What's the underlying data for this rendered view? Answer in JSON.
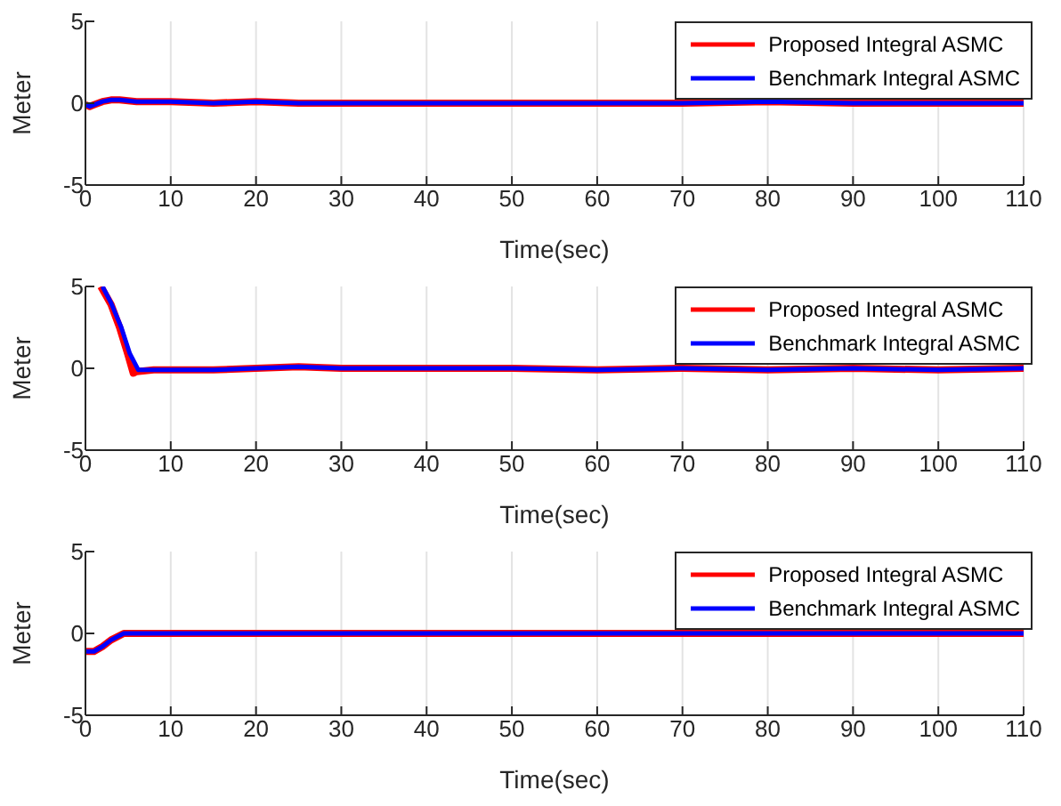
{
  "chart_data": [
    {
      "type": "line",
      "xlabel": "Time(sec)",
      "ylabel": "Meter",
      "xlim": [
        0,
        110
      ],
      "xticks": [
        0,
        10,
        20,
        30,
        40,
        50,
        60,
        70,
        80,
        90,
        100,
        110
      ],
      "ylim": [
        -5,
        5
      ],
      "yticks": [
        -5,
        0,
        5
      ],
      "grid": "x",
      "legend": "top right",
      "series": [
        {
          "name": "Proposed Integral ASMC",
          "color": "#ff0000",
          "x": [
            0,
            0.5,
            1,
            2,
            3,
            4,
            6,
            10,
            15,
            20,
            25,
            30,
            40,
            50,
            60,
            70,
            80,
            90,
            100,
            110
          ],
          "values": [
            -0.1,
            -0.2,
            -0.1,
            0.1,
            0.2,
            0.2,
            0.1,
            0.1,
            0,
            0.1,
            0,
            0,
            0,
            0,
            0,
            0,
            0.1,
            0,
            0,
            0
          ]
        },
        {
          "name": "Benchmark Integral ASMC",
          "color": "#0000ff",
          "x": [
            0,
            0.5,
            1,
            2,
            3,
            4,
            6,
            10,
            15,
            20,
            25,
            30,
            40,
            50,
            60,
            70,
            80,
            90,
            100,
            110
          ],
          "values": [
            -0.1,
            -0.2,
            -0.1,
            0.1,
            0.2,
            0.2,
            0.1,
            0.1,
            0,
            0.1,
            0,
            0,
            0,
            0,
            0,
            0,
            0.1,
            0,
            0,
            0
          ]
        }
      ]
    },
    {
      "type": "line",
      "xlabel": "Time(sec)",
      "ylabel": "Meter",
      "xlim": [
        0,
        110
      ],
      "xticks": [
        0,
        10,
        20,
        30,
        40,
        50,
        60,
        70,
        80,
        90,
        100,
        110
      ],
      "ylim": [
        -5,
        5
      ],
      "yticks": [
        -5,
        0,
        5
      ],
      "grid": "x",
      "legend": "top right",
      "series": [
        {
          "name": "Proposed Integral ASMC",
          "color": "#ff0000",
          "x": [
            1.8,
            3,
            4,
            5,
            5.6,
            6,
            8,
            10,
            15,
            20,
            25,
            30,
            40,
            50,
            60,
            70,
            80,
            90,
            100,
            110
          ],
          "values": [
            5,
            3.9,
            2.5,
            0.8,
            -0.3,
            -0.2,
            -0.1,
            -0.1,
            -0.1,
            0,
            0.1,
            0,
            0,
            0,
            -0.1,
            0,
            -0.1,
            0,
            -0.1,
            0
          ]
        },
        {
          "name": "Benchmark Integral ASMC",
          "color": "#0000ff",
          "x": [
            2,
            3,
            4.2,
            5.2,
            6.2,
            7,
            8,
            10,
            15,
            20,
            25,
            30,
            40,
            50,
            60,
            70,
            80,
            90,
            100,
            110
          ],
          "values": [
            5,
            4,
            2.5,
            0.9,
            -0.1,
            -0.1,
            -0.1,
            -0.1,
            -0.1,
            0,
            0.1,
            0,
            0,
            0,
            -0.1,
            0,
            -0.1,
            0,
            -0.1,
            0
          ]
        }
      ]
    },
    {
      "type": "line",
      "xlabel": "Time(sec)",
      "ylabel": "Meter",
      "xlim": [
        0,
        110
      ],
      "xticks": [
        0,
        10,
        20,
        30,
        40,
        50,
        60,
        70,
        80,
        90,
        100,
        110
      ],
      "ylim": [
        -5,
        5
      ],
      "yticks": [
        -5,
        0,
        5
      ],
      "grid": "x",
      "legend": "top right",
      "series": [
        {
          "name": "Proposed Integral ASMC",
          "color": "#ff0000",
          "x": [
            0,
            1,
            2,
            3,
            4.5,
            10,
            20,
            30,
            40,
            50,
            60,
            70,
            80,
            90,
            100,
            110
          ],
          "values": [
            -1.1,
            -1.1,
            -0.8,
            -0.4,
            0,
            0,
            0,
            0,
            0,
            0,
            0,
            0,
            0,
            0,
            0,
            0
          ]
        },
        {
          "name": "Benchmark Integral ASMC",
          "color": "#0000ff",
          "x": [
            0,
            1,
            2,
            3,
            4.5,
            10,
            20,
            30,
            40,
            50,
            60,
            70,
            80,
            90,
            100,
            110
          ],
          "values": [
            -1.1,
            -1.1,
            -0.8,
            -0.4,
            0,
            0,
            0,
            0,
            0,
            0,
            0,
            0,
            0,
            0,
            0,
            0
          ]
        }
      ]
    }
  ]
}
